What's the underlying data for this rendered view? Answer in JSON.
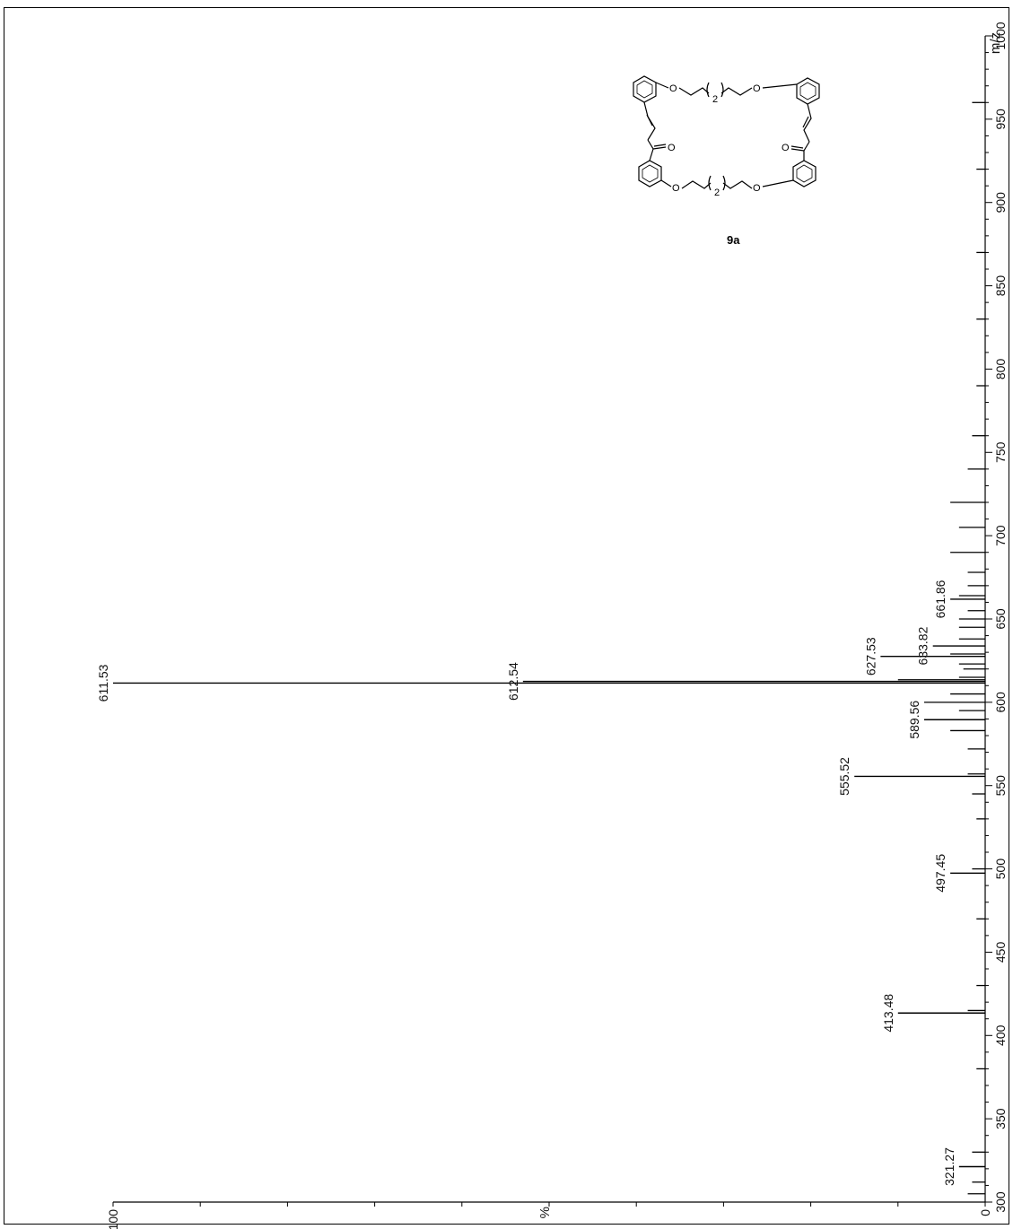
{
  "chart_data": {
    "type": "bar",
    "orientation": "rotated-90",
    "xlabel": "m/z",
    "ylabel": "%",
    "xlim": [
      300,
      1000
    ],
    "ylim": [
      0,
      100
    ],
    "x_ticks": [
      300,
      350,
      400,
      450,
      500,
      550,
      600,
      650,
      700,
      750,
      800,
      850,
      900,
      950,
      1000
    ],
    "y_tick_labels": [
      {
        "value": 0,
        "text": "0"
      },
      {
        "value": 100,
        "text": "100"
      }
    ],
    "labeled_peaks": [
      {
        "mz": 611.53,
        "label": "611.53",
        "intensity": 100
      },
      {
        "mz": 612.54,
        "label": "612.54",
        "intensity": 53
      },
      {
        "mz": 627.53,
        "label": "627.53",
        "intensity": 12
      },
      {
        "mz": 633.82,
        "label": "633.82",
        "intensity": 6
      },
      {
        "mz": 661.86,
        "label": "661.86",
        "intensity": 4
      },
      {
        "mz": 589.56,
        "label": "589.56",
        "intensity": 7
      },
      {
        "mz": 555.52,
        "label": "555.52",
        "intensity": 15
      },
      {
        "mz": 497.45,
        "label": "497.45",
        "intensity": 4
      },
      {
        "mz": 413.48,
        "label": "413.48",
        "intensity": 10
      },
      {
        "mz": 321.27,
        "label": "321.27",
        "intensity": 3
      }
    ],
    "minor_peaks": [
      {
        "mz": 305,
        "intensity": 2
      },
      {
        "mz": 312,
        "intensity": 1.5
      },
      {
        "mz": 330,
        "intensity": 1.5
      },
      {
        "mz": 380,
        "intensity": 1
      },
      {
        "mz": 415,
        "intensity": 2
      },
      {
        "mz": 430,
        "intensity": 1
      },
      {
        "mz": 470,
        "intensity": 1
      },
      {
        "mz": 500,
        "intensity": 1.5
      },
      {
        "mz": 530,
        "intensity": 1
      },
      {
        "mz": 545,
        "intensity": 1.5
      },
      {
        "mz": 557,
        "intensity": 2
      },
      {
        "mz": 572,
        "intensity": 2
      },
      {
        "mz": 583,
        "intensity": 4
      },
      {
        "mz": 595,
        "intensity": 3
      },
      {
        "mz": 600,
        "intensity": 7
      },
      {
        "mz": 605,
        "intensity": 4
      },
      {
        "mz": 613.5,
        "intensity": 10
      },
      {
        "mz": 615,
        "intensity": 3
      },
      {
        "mz": 620,
        "intensity": 2.5
      },
      {
        "mz": 623,
        "intensity": 3
      },
      {
        "mz": 629,
        "intensity": 4
      },
      {
        "mz": 638,
        "intensity": 3
      },
      {
        "mz": 645,
        "intensity": 3
      },
      {
        "mz": 650,
        "intensity": 3
      },
      {
        "mz": 655,
        "intensity": 2
      },
      {
        "mz": 664,
        "intensity": 3
      },
      {
        "mz": 670,
        "intensity": 2
      },
      {
        "mz": 678,
        "intensity": 2
      },
      {
        "mz": 690,
        "intensity": 4
      },
      {
        "mz": 705,
        "intensity": 3
      },
      {
        "mz": 720,
        "intensity": 4
      },
      {
        "mz": 740,
        "intensity": 2
      },
      {
        "mz": 760,
        "intensity": 1.5
      },
      {
        "mz": 790,
        "intensity": 1
      },
      {
        "mz": 830,
        "intensity": 1
      },
      {
        "mz": 870,
        "intensity": 1
      },
      {
        "mz": 920,
        "intensity": 1
      },
      {
        "mz": 960,
        "intensity": 1.5
      }
    ]
  },
  "structure": {
    "compound_label": "9a",
    "atom_O": "O",
    "subscript_2": "2"
  }
}
